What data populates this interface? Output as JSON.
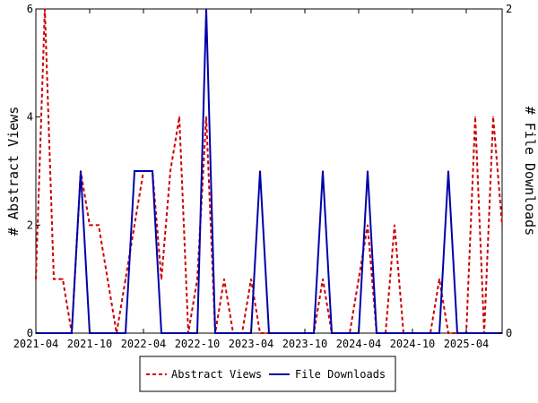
{
  "chart_data": {
    "type": "line",
    "x_labels": [
      "2021-04",
      "2021-05",
      "2021-06",
      "2021-07",
      "2021-08",
      "2021-09",
      "2021-10",
      "2021-11",
      "2021-12",
      "2022-01",
      "2022-02",
      "2022-03",
      "2022-04",
      "2022-05",
      "2022-06",
      "2022-07",
      "2022-08",
      "2022-09",
      "2022-10",
      "2022-11",
      "2022-12",
      "2023-01",
      "2023-02",
      "2023-03",
      "2023-04",
      "2023-05",
      "2023-06",
      "2023-07",
      "2023-08",
      "2023-09",
      "2023-10",
      "2023-11",
      "2023-12",
      "2024-01",
      "2024-02",
      "2024-03",
      "2024-04",
      "2024-05",
      "2024-06",
      "2024-07",
      "2024-08",
      "2024-09",
      "2024-10",
      "2024-11",
      "2024-12",
      "2025-01",
      "2025-02",
      "2025-03",
      "2025-04",
      "2025-05",
      "2025-06",
      "2025-07",
      "2025-08"
    ],
    "tick_labels": [
      "2021-04",
      "2021-10",
      "2022-04",
      "2022-10",
      "2023-04",
      "2023-10",
      "2024-04",
      "2024-10",
      "2025-04"
    ],
    "series": [
      {
        "name": "Abstract Views",
        "axis": "left",
        "color": "#cc0000",
        "style": "dashed",
        "values": [
          1,
          6,
          1,
          1,
          0,
          3,
          2,
          2,
          1,
          0,
          1,
          2,
          3,
          3,
          1,
          3,
          4,
          0,
          1,
          4,
          0,
          1,
          0,
          0,
          1,
          0,
          0,
          0,
          0,
          0,
          0,
          0,
          1,
          0,
          0,
          0,
          1,
          2,
          0,
          0,
          2,
          0,
          0,
          0,
          0,
          1,
          0,
          0,
          0,
          4,
          0,
          4,
          2
        ]
      },
      {
        "name": "File Downloads",
        "axis": "right",
        "color": "#0000aa",
        "style": "solid",
        "values": [
          0,
          0,
          0,
          0,
          0,
          1,
          0,
          0,
          0,
          0,
          0,
          1,
          1,
          1,
          0,
          0,
          0,
          0,
          0,
          2,
          0,
          0,
          0,
          0,
          0,
          1,
          0,
          0,
          0,
          0,
          0,
          0,
          1,
          0,
          0,
          0,
          0,
          1,
          0,
          0,
          0,
          0,
          0,
          0,
          0,
          0,
          1,
          0,
          0,
          0,
          0,
          0,
          0
        ]
      }
    ],
    "ylabel_left": "# Abstract Views",
    "ylabel_right": "# File Downloads",
    "ylim_left": [
      0,
      6
    ],
    "ylim_right": [
      0,
      2
    ],
    "yticks_left": [
      0,
      2,
      4,
      6
    ],
    "yticks_right": [
      0,
      2
    ],
    "legend_position": "bottom-center",
    "grid": false
  }
}
